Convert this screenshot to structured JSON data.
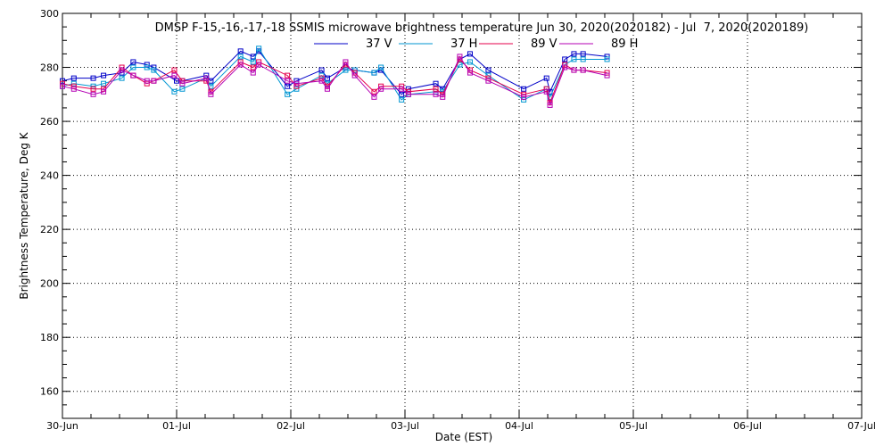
{
  "chart_data": {
    "type": "line",
    "title": "DMSP F-15,-16,-17,-18 SSMIS microwave brightness temperature Jun 30, 2020(2020182) - Jul  7, 2020(2020189)",
    "xlabel": "Date (EST)",
    "ylabel": "Brightness Temperature, Deg K",
    "xlim_days": [
      0,
      7
    ],
    "ylim": [
      150,
      300
    ],
    "x_tick_labels": [
      "30-Jun",
      "01-Jul",
      "02-Jul",
      "03-Jul",
      "04-Jul",
      "05-Jul",
      "06-Jul",
      "07-Jul"
    ],
    "y_ticks": [
      160,
      180,
      200,
      220,
      240,
      260,
      280,
      300
    ],
    "grid": true,
    "legend_position": "top-center",
    "marker": "open-square",
    "series": [
      {
        "name": "37 V",
        "color": "#0000c8",
        "x": [
          0.0,
          0.1,
          0.27,
          0.36,
          0.52,
          0.62,
          0.74,
          0.8,
          1.0,
          1.05,
          1.26,
          1.3,
          1.56,
          1.67,
          1.72,
          1.97,
          2.05,
          2.27,
          2.32,
          2.48,
          2.56,
          2.73,
          2.79,
          2.97,
          3.03,
          3.27,
          3.33,
          3.48,
          3.57,
          3.73,
          4.04,
          4.24,
          4.27,
          4.4,
          4.48,
          4.56,
          4.77
        ],
        "y": [
          275,
          276,
          276,
          277,
          278,
          282,
          281,
          280,
          275,
          275,
          277,
          275,
          286,
          284,
          286,
          273,
          275,
          279,
          276,
          280,
          279,
          278,
          279,
          270,
          272,
          274,
          272,
          283,
          285,
          279,
          272,
          276,
          271,
          283,
          285,
          285,
          284
        ]
      },
      {
        "name": "37 H",
        "color": "#0096d2",
        "x": [
          0.0,
          0.1,
          0.27,
          0.36,
          0.52,
          0.62,
          0.74,
          0.8,
          0.98,
          1.05,
          1.26,
          1.3,
          1.56,
          1.67,
          1.72,
          1.97,
          2.05,
          2.27,
          2.32,
          2.48,
          2.56,
          2.73,
          2.79,
          2.97,
          3.03,
          3.27,
          3.33,
          3.48,
          3.57,
          3.73,
          4.04,
          4.24,
          4.27,
          4.4,
          4.48,
          4.56,
          4.77
        ],
        "y": [
          273,
          274,
          273,
          274,
          276,
          280,
          280,
          279,
          271,
          272,
          276,
          273,
          284,
          282,
          287,
          270,
          272,
          277,
          274,
          279,
          279,
          278,
          280,
          268,
          270,
          271,
          271,
          281,
          282,
          277,
          268,
          272,
          269,
          281,
          283,
          283,
          283
        ]
      },
      {
        "name": "89 V",
        "color": "#e6004b",
        "x": [
          0.0,
          0.1,
          0.27,
          0.36,
          0.52,
          0.62,
          0.74,
          0.8,
          0.98,
          1.05,
          1.26,
          1.3,
          1.56,
          1.67,
          1.72,
          1.97,
          2.05,
          2.27,
          2.32,
          2.48,
          2.56,
          2.73,
          2.79,
          2.97,
          3.03,
          3.27,
          3.33,
          3.48,
          3.57,
          3.73,
          4.04,
          4.24,
          4.27,
          4.4,
          4.48,
          4.56,
          4.77
        ],
        "y": [
          274,
          273,
          272,
          272,
          280,
          277,
          274,
          275,
          279,
          275,
          275,
          271,
          282,
          280,
          282,
          277,
          273,
          276,
          273,
          281,
          278,
          271,
          273,
          273,
          271,
          272,
          270,
          283,
          279,
          276,
          270,
          272,
          267,
          281,
          279,
          279,
          278
        ]
      },
      {
        "name": "89 H",
        "color": "#b400b4",
        "x": [
          0.0,
          0.1,
          0.27,
          0.36,
          0.52,
          0.62,
          0.74,
          0.8,
          0.98,
          1.05,
          1.26,
          1.3,
          1.56,
          1.67,
          1.72,
          1.97,
          2.05,
          2.27,
          2.32,
          2.48,
          2.56,
          2.73,
          2.79,
          2.97,
          3.03,
          3.27,
          3.33,
          3.48,
          3.57,
          3.73,
          4.04,
          4.24,
          4.27,
          4.4,
          4.48,
          4.56,
          4.77
        ],
        "y": [
          273,
          272,
          270,
          271,
          279,
          277,
          275,
          275,
          277,
          274,
          276,
          270,
          281,
          278,
          281,
          275,
          274,
          275,
          272,
          282,
          277,
          269,
          272,
          272,
          270,
          270,
          269,
          284,
          278,
          275,
          269,
          271,
          266,
          280,
          279,
          279,
          277
        ]
      }
    ]
  }
}
